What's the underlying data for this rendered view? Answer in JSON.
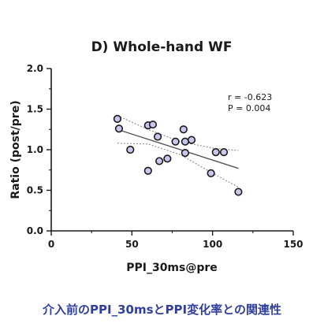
{
  "chart_data": {
    "type": "scatter",
    "title": "D) Whole-hand WF",
    "xlabel": "PPI_30ms@pre",
    "ylabel": "Ratio (post/pre)",
    "xlim": [
      0,
      150
    ],
    "ylim": [
      0.0,
      2.0
    ],
    "xticks": [
      "0",
      "50",
      "100",
      "150"
    ],
    "yticks": [
      "0.0",
      "0.5",
      "1.0",
      "1.5",
      "2.0"
    ],
    "grid": false,
    "annotations": [
      "r = -0.623",
      "P = 0.004"
    ],
    "points": [
      {
        "x": 41,
        "y": 1.38
      },
      {
        "x": 42,
        "y": 1.26
      },
      {
        "x": 49,
        "y": 1.0
      },
      {
        "x": 60,
        "y": 1.3
      },
      {
        "x": 63,
        "y": 1.31
      },
      {
        "x": 60,
        "y": 0.74
      },
      {
        "x": 66,
        "y": 1.16
      },
      {
        "x": 67,
        "y": 0.86
      },
      {
        "x": 72,
        "y": 0.89
      },
      {
        "x": 77,
        "y": 1.1
      },
      {
        "x": 82,
        "y": 1.25
      },
      {
        "x": 83,
        "y": 1.1
      },
      {
        "x": 83,
        "y": 0.96
      },
      {
        "x": 87,
        "y": 1.12
      },
      {
        "x": 99,
        "y": 0.71
      },
      {
        "x": 102,
        "y": 0.97
      },
      {
        "x": 107,
        "y": 0.97
      },
      {
        "x": 116,
        "y": 0.48
      }
    ],
    "regression": {
      "x": [
        41,
        116
      ],
      "y": [
        1.25,
        0.77
      ]
    },
    "ci_upper": {
      "x": [
        41,
        60,
        80,
        100,
        116
      ],
      "y": [
        1.42,
        1.25,
        1.1,
        1.02,
        0.99
      ]
    },
    "ci_lower": {
      "x": [
        41,
        60,
        80,
        100,
        116
      ],
      "y": [
        1.08,
        1.07,
        0.94,
        0.71,
        0.54
      ]
    },
    "colors": {
      "point_fill": "#c8c6ea",
      "point_stroke": "#1a1a1a",
      "line": "#555555",
      "ci": "#8a8a8a",
      "axis": "#1a1a1a"
    }
  },
  "caption": "介入前のPPI_30msとPPI変化率との関連性",
  "caption_color": "#2f3fa0"
}
